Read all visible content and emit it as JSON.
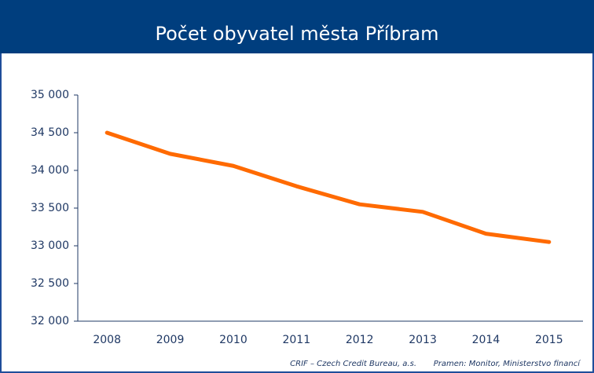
{
  "chart_data": {
    "type": "line",
    "title": "Počet obyvatel města Příbram",
    "categories": [
      "2008",
      "2009",
      "2010",
      "2011",
      "2012",
      "2013",
      "2014",
      "2015"
    ],
    "series": [
      {
        "name": "Počet obyvatel",
        "color": "#ff6a00",
        "values": [
          34500,
          34220,
          34060,
          33790,
          33550,
          33450,
          33160,
          33050
        ]
      }
    ],
    "ylim": [
      32000,
      35000
    ],
    "yticks": [
      {
        "value": 32000,
        "label": "32 000"
      },
      {
        "value": 32500,
        "label": "32 500"
      },
      {
        "value": 33000,
        "label": "33 000"
      },
      {
        "value": 33500,
        "label": "33 500"
      },
      {
        "value": 34000,
        "label": "34 000"
      },
      {
        "value": 34500,
        "label": "34 500"
      },
      {
        "value": 35000,
        "label": "35 000"
      }
    ],
    "grid": false,
    "footer": [
      "CRIF – Czech Credit Bureau, a.s.",
      "Pramen: Monitor, Ministerstvo financí"
    ]
  }
}
